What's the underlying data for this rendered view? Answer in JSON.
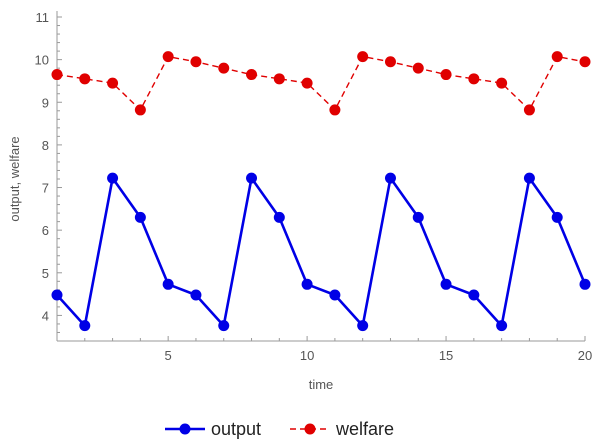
{
  "chart_data": {
    "type": "line",
    "title": "",
    "xlabel": "time",
    "ylabel": "output, welfare",
    "xlim": [
      1,
      20
    ],
    "ylim": [
      3.4,
      11
    ],
    "xticks": [
      5,
      10,
      15,
      20
    ],
    "yticks": [
      4,
      5,
      6,
      7,
      8,
      9,
      10,
      11
    ],
    "grid": false,
    "legend_position": "bottom",
    "x": [
      1,
      2,
      3,
      4,
      5,
      6,
      7,
      8,
      9,
      10,
      11,
      12,
      13,
      14,
      15,
      16,
      17,
      18,
      19,
      20
    ],
    "series": [
      {
        "name": "output",
        "color": "#0000e6",
        "style": "solid",
        "values": [
          4.48,
          3.76,
          7.22,
          6.3,
          4.73,
          4.48,
          3.76,
          7.22,
          6.3,
          4.73,
          4.48,
          3.76,
          7.22,
          6.3,
          4.73,
          4.48,
          3.76,
          7.22,
          6.3,
          4.73
        ]
      },
      {
        "name": "welfare",
        "color": "#e00000",
        "style": "dashed",
        "values": [
          9.65,
          9.55,
          9.45,
          8.82,
          10.07,
          9.95,
          9.8,
          9.65,
          9.55,
          9.45,
          8.82,
          10.07,
          9.95,
          9.8,
          9.65,
          9.55,
          9.45,
          8.82,
          10.07,
          9.95
        ]
      }
    ]
  }
}
